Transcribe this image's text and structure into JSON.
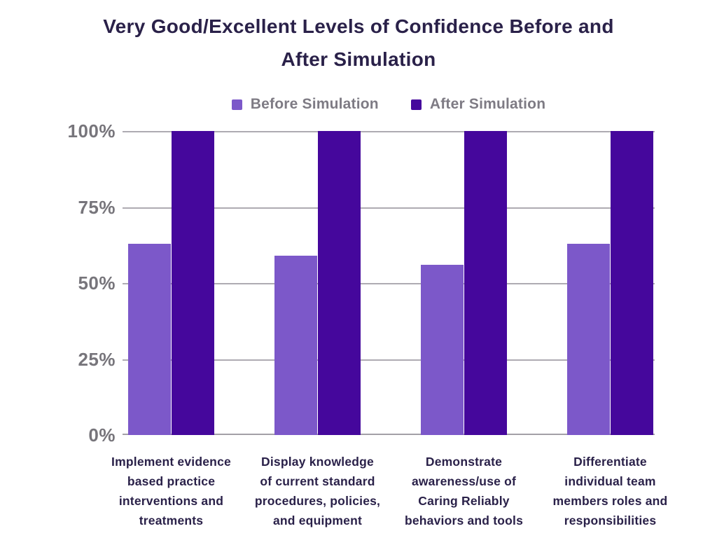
{
  "title": {
    "text": "Very Good/Excellent Levels of Confidence Before and After Simulation",
    "line1": "Very Good/Excellent Levels of Confidence Before and",
    "line2": "After Simulation"
  },
  "colors": {
    "before_bar": "#7C58C9",
    "after_bar": "#45079C",
    "title_text": "#2A2149",
    "category_text": "#2A2149",
    "axis_tick_text": "#77757B",
    "legend_text": "#7E7B84",
    "gridline": "#AEABB2",
    "background": "#FFFFFF"
  },
  "legend": {
    "items": [
      {
        "label": "Before Simulation",
        "color": "#7C58C9"
      },
      {
        "label": "After Simulation",
        "color": "#45079C"
      }
    ]
  },
  "chart_data": {
    "type": "bar",
    "title": "Very Good/Excellent Levels of Confidence Before and After Simulation",
    "categories": [
      {
        "label": "Implement evidence based practice interventions and treatments",
        "lines": [
          "Implement evidence",
          "based practice",
          "interventions and",
          "treatments"
        ]
      },
      {
        "label": "Display knowledge of current standard procedures, policies, and equipment",
        "lines": [
          "Display knowledge",
          "of current standard",
          "procedures, policies,",
          "and equipment"
        ]
      },
      {
        "label": "Demonstrate awareness/use of Caring Reliably behaviors and tools",
        "lines": [
          "Demonstrate",
          "awareness/use of",
          "Caring Reliably",
          "behaviors and tools"
        ]
      },
      {
        "label": "Differentiate individual team members roles and responsibilities",
        "lines": [
          "Differentiate",
          "individual team",
          "members roles and",
          "responsibilities"
        ]
      }
    ],
    "series": [
      {
        "name": "Before Simulation",
        "color": "#7C58C9",
        "values": [
          63,
          59,
          56,
          63
        ]
      },
      {
        "name": "After Simulation",
        "color": "#45079C",
        "values": [
          100,
          100,
          100,
          100
        ]
      }
    ],
    "y_ticks": [
      100,
      75,
      50,
      25,
      0
    ],
    "y_tick_labels": [
      "100%",
      "75%",
      "50%",
      "25%",
      "0%"
    ],
    "ylim": [
      0,
      100
    ],
    "unit": "%",
    "grid": true,
    "legend_position": "top"
  }
}
